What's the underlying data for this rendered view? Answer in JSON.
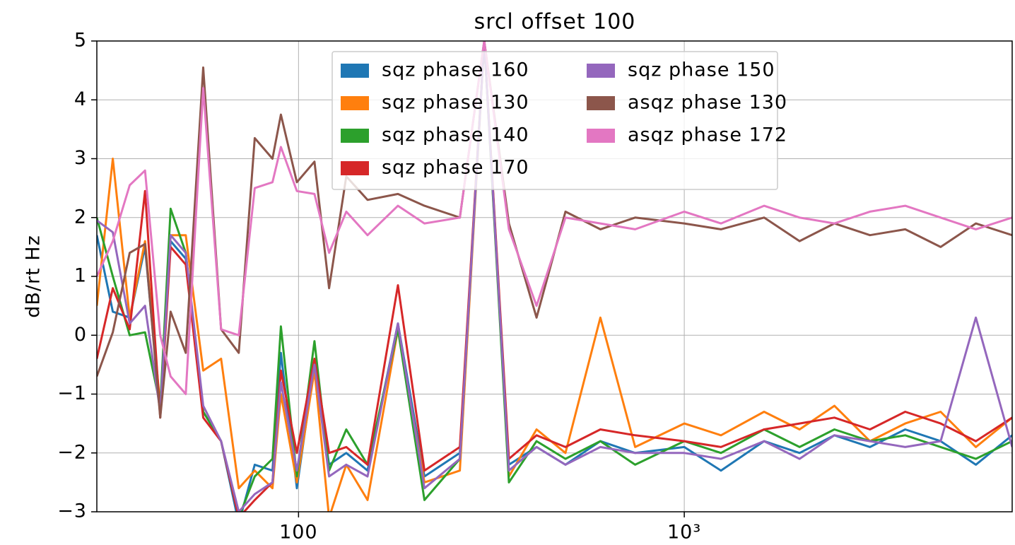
{
  "chart_data": {
    "type": "line",
    "title": "srcl offset 100",
    "ylabel": "dB/rt Hz",
    "xscale": "log",
    "grid": true,
    "legend": "upper center",
    "xlim": [
      30,
      7080
    ],
    "xticks": [
      100,
      {
        "value": 1000,
        "label": "10³"
      }
    ],
    "ylim": [
      -3,
      5
    ],
    "yticks": [
      {
        "value": -3,
        "label": "−3"
      },
      {
        "value": -2,
        "label": "−2"
      },
      {
        "value": -1,
        "label": "−1"
      },
      0,
      1,
      2,
      3,
      4,
      5
    ],
    "x": [
      30,
      33,
      36.5,
      40,
      43.8,
      46.6,
      51,
      56.6,
      63,
      70,
      77,
      85.6,
      90,
      99,
      110,
      120,
      133,
      151,
      181,
      212,
      262,
      303,
      351,
      414,
      492,
      606,
      746,
      1000,
      1245,
      1610,
      1990,
      2450,
      3030,
      3740,
      4620,
      5700,
      7080
    ],
    "series": [
      {
        "name": "sqz phase 160",
        "color": "#1f77b4",
        "values": [
          1.7,
          0.4,
          0.3,
          1.5,
          -1.3,
          1.6,
          1.3,
          -1.3,
          -1.8,
          -3.2,
          -2.2,
          -2.3,
          -0.3,
          -2.6,
          -0.5,
          -2.2,
          -2.0,
          -2.3,
          0.2,
          -2.4,
          -2.0,
          5.0,
          -2.2,
          -1.9,
          -2.2,
          -1.8,
          -2.0,
          -1.9,
          -2.3,
          -1.8,
          -2.0,
          -1.7,
          -1.9,
          -1.6,
          -1.8,
          -2.2,
          -1.7
        ]
      },
      {
        "name": "sqz phase 130",
        "color": "#ff7f0e",
        "values": [
          0.5,
          3.0,
          0.3,
          1.6,
          -1.2,
          1.7,
          1.7,
          -0.6,
          -0.4,
          -2.6,
          -2.3,
          -2.6,
          -1.0,
          -2.5,
          -0.6,
          -3.1,
          -2.2,
          -2.8,
          0.1,
          -2.5,
          -2.3,
          5.0,
          -2.4,
          -1.6,
          -2.0,
          0.3,
          -1.9,
          -1.5,
          -1.7,
          -1.3,
          -1.6,
          -1.2,
          -1.8,
          -1.5,
          -1.3,
          -1.9,
          -1.4
        ]
      },
      {
        "name": "sqz phase 140",
        "color": "#2ca02c",
        "values": [
          2.0,
          1.0,
          0.0,
          0.05,
          -1.2,
          2.15,
          1.4,
          -1.3,
          -1.8,
          -3.1,
          -2.4,
          -2.1,
          0.15,
          -2.4,
          -0.1,
          -2.3,
          -1.6,
          -2.2,
          0.1,
          -2.8,
          -2.1,
          5.0,
          -2.5,
          -1.8,
          -2.1,
          -1.8,
          -2.2,
          -1.8,
          -2.0,
          -1.6,
          -1.9,
          -1.6,
          -1.8,
          -1.7,
          -1.9,
          -2.1,
          -1.8
        ]
      },
      {
        "name": "sqz phase 170",
        "color": "#d62728",
        "values": [
          -0.4,
          0.8,
          0.1,
          2.45,
          -1.4,
          1.5,
          1.2,
          -1.4,
          -1.8,
          -3.1,
          -2.8,
          -2.5,
          -0.6,
          -2.0,
          -0.4,
          -2.0,
          -1.9,
          -2.2,
          0.85,
          -2.3,
          -1.9,
          5.0,
          -2.1,
          -1.7,
          -1.9,
          -1.6,
          -1.7,
          -1.8,
          -1.9,
          -1.6,
          -1.5,
          -1.4,
          -1.6,
          -1.3,
          -1.5,
          -1.8,
          -1.4
        ]
      },
      {
        "name": "sqz phase 150",
        "color": "#9467bd",
        "values": [
          1.95,
          1.75,
          0.2,
          0.5,
          -1.3,
          1.7,
          1.4,
          -1.2,
          -1.8,
          -3.0,
          -2.7,
          -2.5,
          -0.8,
          -2.3,
          -0.5,
          -2.4,
          -2.2,
          -2.4,
          0.2,
          -2.6,
          -2.1,
          5.0,
          -2.3,
          -1.9,
          -2.2,
          -1.9,
          -2.0,
          -2.0,
          -2.1,
          -1.8,
          -2.1,
          -1.7,
          -1.8,
          -1.9,
          -1.8,
          0.3,
          -1.9
        ]
      },
      {
        "name": "asqz phase 130",
        "color": "#8c564b",
        "values": [
          -0.7,
          0.05,
          1.4,
          1.55,
          -1.4,
          0.4,
          -0.3,
          4.55,
          0.1,
          -0.3,
          3.35,
          3.0,
          3.75,
          2.6,
          2.95,
          0.8,
          2.7,
          2.3,
          2.4,
          2.2,
          2.0,
          5.0,
          1.9,
          0.3,
          2.1,
          1.8,
          2.0,
          1.9,
          1.8,
          2.0,
          1.6,
          1.9,
          1.7,
          1.8,
          1.5,
          1.9,
          1.7
        ]
      },
      {
        "name": "asqz phase 172",
        "color": "#e377c2",
        "values": [
          1.0,
          1.6,
          2.55,
          2.8,
          0.0,
          -0.7,
          -1.0,
          4.2,
          0.1,
          0.0,
          2.5,
          2.6,
          3.2,
          2.45,
          2.4,
          1.4,
          2.1,
          1.7,
          2.2,
          1.9,
          2.0,
          5.0,
          1.8,
          0.5,
          2.0,
          1.9,
          1.8,
          2.1,
          1.9,
          2.2,
          2.0,
          1.9,
          2.1,
          2.2,
          2.0,
          1.8,
          2.0
        ]
      }
    ]
  }
}
